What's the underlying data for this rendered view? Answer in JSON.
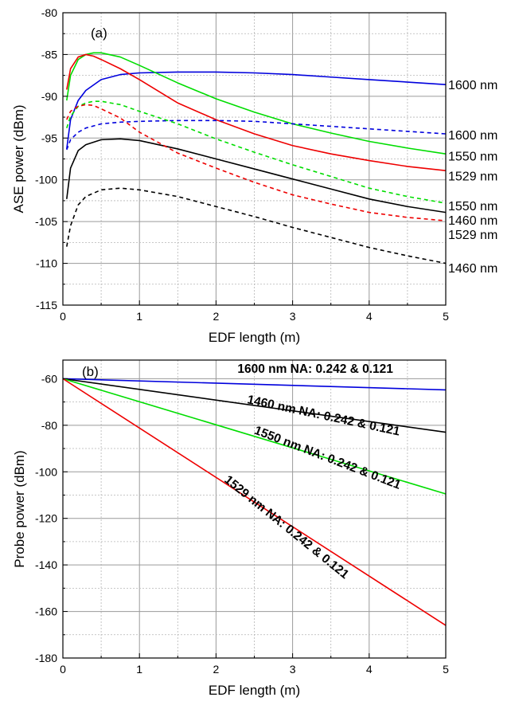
{
  "chart_data": [
    {
      "type": "line",
      "panel_label": "(a)",
      "xlabel": "EDF length (m)",
      "ylabel": "ASE power (dBm)",
      "xlim": [
        0,
        5
      ],
      "ylim": [
        -115,
        -80
      ],
      "xticks": [
        0,
        1,
        2,
        3,
        4,
        5
      ],
      "xtick_labels": [
        "0",
        "1",
        "2",
        "3",
        "4",
        "5"
      ],
      "yticks": [
        -115,
        -110,
        -105,
        -100,
        -95,
        -90,
        -85,
        -80
      ],
      "ytick_labels": [
        "-115",
        "-110",
        "-105",
        "-100",
        "-95",
        "-90",
        "-85",
        "-80"
      ],
      "grid": true,
      "series": [
        {
          "color": "#0000dd",
          "dash": "solid",
          "end_label": "1600 nm",
          "x": [
            0.05,
            0.1,
            0.2,
            0.3,
            0.5,
            0.75,
            1,
            1.5,
            2,
            2.5,
            3,
            3.5,
            4,
            4.5,
            5
          ],
          "y": [
            -96.3,
            -92.8,
            -90.5,
            -89.3,
            -88.0,
            -87.4,
            -87.2,
            -87.1,
            -87.1,
            -87.2,
            -87.4,
            -87.7,
            -88.0,
            -88.3,
            -88.6
          ]
        },
        {
          "color": "#00dd00",
          "dash": "solid",
          "end_label": "1550 nm",
          "x": [
            0.05,
            0.1,
            0.2,
            0.3,
            0.4,
            0.5,
            0.75,
            1,
            1.5,
            2,
            2.5,
            3,
            3.5,
            4,
            4.5,
            5
          ],
          "y": [
            -90.5,
            -87.5,
            -85.6,
            -85.0,
            -84.8,
            -84.8,
            -85.3,
            -86.3,
            -88.4,
            -90.3,
            -91.9,
            -93.3,
            -94.4,
            -95.4,
            -96.2,
            -96.9
          ]
        },
        {
          "color": "#ee0000",
          "dash": "solid",
          "end_label": "1529 nm",
          "x": [
            0.05,
            0.1,
            0.2,
            0.3,
            0.4,
            0.5,
            0.75,
            1,
            1.5,
            2,
            2.5,
            3,
            3.5,
            4,
            4.5,
            5
          ],
          "y": [
            -89.2,
            -86.7,
            -85.3,
            -85.0,
            -85.2,
            -85.6,
            -86.7,
            -88.0,
            -90.8,
            -92.8,
            -94.5,
            -95.9,
            -96.9,
            -97.7,
            -98.4,
            -98.9
          ]
        },
        {
          "color": "#000000",
          "dash": "solid",
          "end_label": "1460 nm",
          "x": [
            0.05,
            0.1,
            0.2,
            0.3,
            0.5,
            0.75,
            1,
            1.5,
            2,
            2.5,
            3,
            3.5,
            4,
            4.5,
            5
          ],
          "y": [
            -102.3,
            -98.6,
            -96.5,
            -95.8,
            -95.2,
            -95.1,
            -95.3,
            -96.3,
            -97.5,
            -98.7,
            -99.9,
            -101.1,
            -102.3,
            -103.2,
            -103.9
          ]
        },
        {
          "color": "#0000dd",
          "dash": "dashed",
          "end_label": "1600 nm",
          "x": [
            0.05,
            0.1,
            0.2,
            0.3,
            0.5,
            0.75,
            1,
            1.5,
            2,
            2.5,
            3,
            3.5,
            4,
            4.5,
            5
          ],
          "y": [
            -96.4,
            -95.2,
            -94.3,
            -93.8,
            -93.3,
            -93.1,
            -93.0,
            -92.9,
            -92.9,
            -93.0,
            -93.3,
            -93.6,
            -93.9,
            -94.2,
            -94.5
          ]
        },
        {
          "color": "#00dd00",
          "dash": "dashed",
          "end_label": "1550 nm",
          "x": [
            0.05,
            0.1,
            0.2,
            0.3,
            0.4,
            0.5,
            0.75,
            1,
            1.5,
            2,
            2.5,
            3,
            3.5,
            4,
            4.5,
            5
          ],
          "y": [
            -93.8,
            -92.4,
            -91.2,
            -90.8,
            -90.6,
            -90.6,
            -91.0,
            -91.8,
            -93.3,
            -95.1,
            -96.7,
            -98.2,
            -99.6,
            -101.0,
            -102.0,
            -102.8
          ]
        },
        {
          "color": "#ee0000",
          "dash": "dashed",
          "end_label": "1529 nm",
          "x": [
            0.05,
            0.1,
            0.2,
            0.3,
            0.4,
            0.5,
            0.75,
            1,
            1.5,
            2,
            2.5,
            3,
            3.5,
            4,
            4.5,
            5
          ],
          "y": [
            -92.8,
            -91.8,
            -91.2,
            -91.0,
            -91.1,
            -91.5,
            -92.6,
            -94.3,
            -96.8,
            -98.6,
            -100.3,
            -101.8,
            -102.9,
            -103.9,
            -104.5,
            -104.9
          ]
        },
        {
          "color": "#000000",
          "dash": "dashed",
          "end_label": "1460 nm",
          "x": [
            0.05,
            0.1,
            0.2,
            0.3,
            0.5,
            0.75,
            1,
            1.5,
            2,
            2.5,
            3,
            3.5,
            4,
            4.5,
            5
          ],
          "y": [
            -108.0,
            -105.5,
            -103.0,
            -102.0,
            -101.2,
            -101.0,
            -101.2,
            -102.0,
            -103.2,
            -104.4,
            -105.7,
            -106.9,
            -108.1,
            -109.1,
            -110.0
          ]
        }
      ],
      "end_labels": [
        {
          "text": "1600 nm",
          "y": -88.6
        },
        {
          "text": "1600 nm",
          "y": -94.6
        },
        {
          "text": "1550 nm",
          "y": -97.1
        },
        {
          "text": "1529 nm",
          "y": -99.5
        },
        {
          "text": "1550 nm",
          "y": -103.1
        },
        {
          "text": "1460 nm",
          "y": -104.8
        },
        {
          "text": "1529 nm",
          "y": -106.5
        },
        {
          "text": "1460 nm",
          "y": -110.5
        }
      ]
    },
    {
      "type": "line",
      "panel_label": "(b)",
      "xlabel": "EDF length (m)",
      "ylabel": "Probe power (dBm)",
      "xlim": [
        0,
        5
      ],
      "ylim": [
        -180,
        -52
      ],
      "xticks": [
        0,
        1,
        2,
        3,
        4,
        5
      ],
      "xtick_labels": [
        "0",
        "1",
        "2",
        "3",
        "4",
        "5"
      ],
      "yticks": [
        -180,
        -160,
        -140,
        -120,
        -100,
        -80,
        -60
      ],
      "ytick_labels": [
        "-180",
        "-160",
        "-140",
        "-120",
        "-100",
        "-80",
        "-60"
      ],
      "grid": true,
      "series": [
        {
          "color": "#0000dd",
          "x": [
            0,
            5
          ],
          "y": [
            -60,
            -64.8
          ]
        },
        {
          "color": "#000000",
          "x": [
            0,
            5
          ],
          "y": [
            -60,
            -83.0
          ]
        },
        {
          "color": "#00dd00",
          "x": [
            0,
            5
          ],
          "y": [
            -60,
            -109.5
          ]
        },
        {
          "color": "#ee0000",
          "x": [
            0,
            5
          ],
          "y": [
            -60,
            -166.0
          ]
        }
      ],
      "annotations": [
        {
          "text": "1600 nm NA: 0.242 & 0.121",
          "x": 2.28,
          "y": -57.5,
          "angle": 0
        },
        {
          "text": "1460 nm NA: 0.242 & 0.121",
          "x": 2.4,
          "y": -70.5,
          "angle": 12
        },
        {
          "text": "1550 nm NA: 0.242 & 0.121",
          "x": 2.49,
          "y": -83.5,
          "angle": 21
        },
        {
          "text": "1529 nm NA: 0.242 & 0.121",
          "x": 2.1,
          "y": -104,
          "angle": 39
        }
      ]
    }
  ]
}
